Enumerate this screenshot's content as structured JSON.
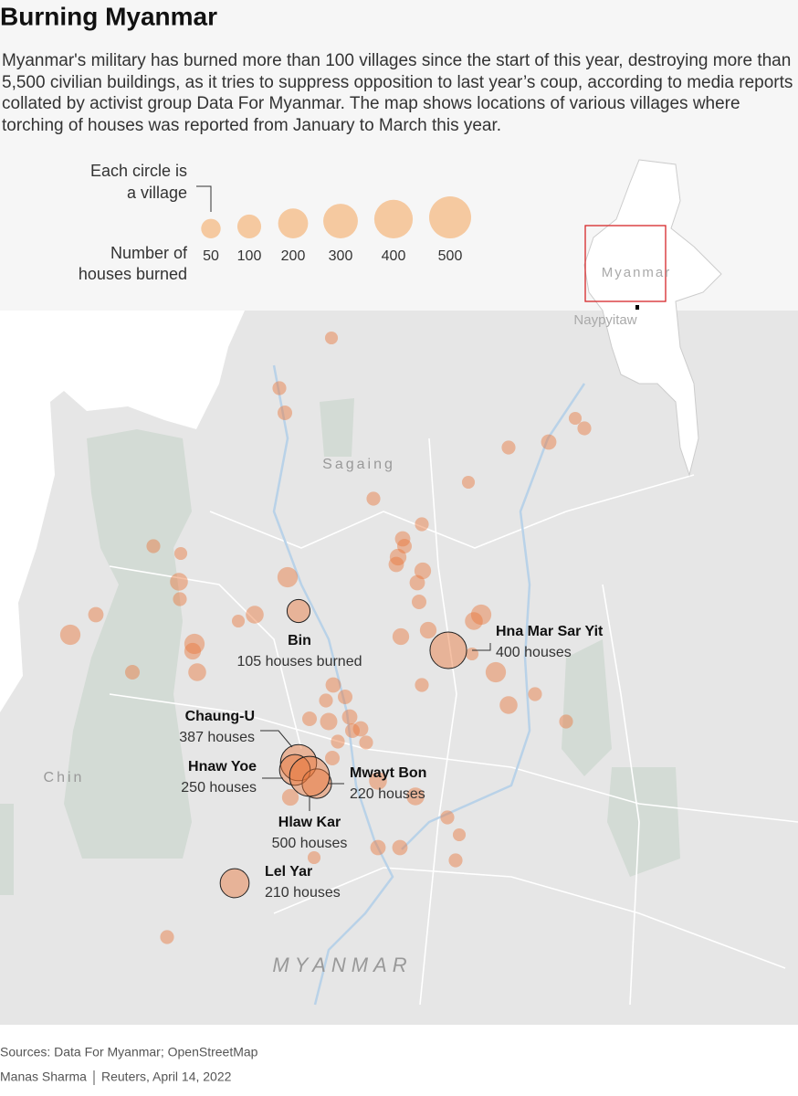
{
  "header": {
    "title": "Burning Myanmar",
    "description": "Myanmar's military has burned more than 100 villages since the start of this year, destroying more than 5,500 civilian buildings, as it tries to suppress opposition to last year’s coup, according to media reports collated by activist group Data For Myanmar. The map shows locations of various villages where torching of houses was reported from January to March this year."
  },
  "legend": {
    "circle_note": [
      "Each circle is",
      "a village"
    ],
    "size_note": [
      "Number of",
      "houses burned"
    ],
    "sizes": [
      50,
      100,
      200,
      300,
      400,
      500
    ],
    "color": "#f5c9a0"
  },
  "inset": {
    "country": "Myanmar",
    "capital": "Naypyitaw"
  },
  "regions": {
    "north": "Sagaing",
    "west": "Chin",
    "country": "MYANMAR"
  },
  "circle_color": "#e8763a",
  "villages": [
    {
      "name": "Bin",
      "houses": 105,
      "label": "105 houses burned"
    },
    {
      "name": "Hna Mar Sar Yit",
      "houses": 400,
      "label": "400 houses"
    },
    {
      "name": "Chaung-U",
      "houses": 387,
      "label": "387 houses"
    },
    {
      "name": "Hnaw Yoe",
      "houses": 250,
      "label": "250 houses"
    },
    {
      "name": "Mwayt Bon",
      "houses": 220,
      "label": "220 houses"
    },
    {
      "name": "Hlaw Kar",
      "houses": 500,
      "label": "500 houses"
    },
    {
      "name": "Lel Yar",
      "houses": 210,
      "label": "210 houses"
    }
  ],
  "other_villages": [
    30,
    40,
    50,
    30,
    40,
    40,
    60,
    30,
    40,
    40,
    60,
    50,
    80,
    60,
    80,
    60,
    40,
    30,
    100,
    40,
    150,
    100,
    30,
    50,
    60,
    150,
    150,
    80,
    100,
    50,
    80,
    80,
    150,
    100,
    150,
    100,
    40,
    40,
    60,
    50,
    40,
    50,
    90,
    60,
    50,
    60,
    40,
    40,
    50,
    40,
    100,
    100,
    80,
    40,
    30,
    60,
    60,
    40,
    30,
    40,
    30
  ],
  "footer": {
    "sources": "Sources: Data For Myanmar; OpenStreetMap",
    "author": "Manas Sharma",
    "outlet": "Reuters, April 14, 2022"
  }
}
